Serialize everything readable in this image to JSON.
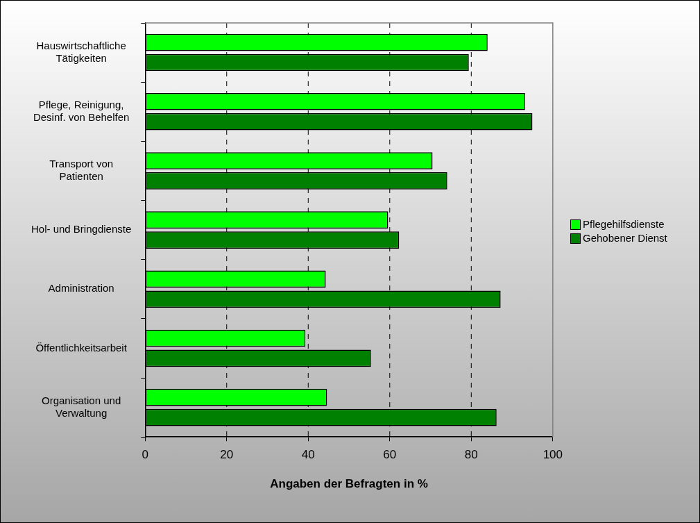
{
  "chart_data": {
    "type": "bar",
    "orientation": "horizontal",
    "xlabel": "Angaben der Befragten in %",
    "categories": [
      "Hauswirtschaftliche Tätigkeiten",
      "Pflege, Reinigung, Desinf. von Behelfen",
      "Transport von Patienten",
      "Hol- und Bringdienste",
      "Administration",
      "Öffentlichkeitsarbeit",
      "Organisation und Verwaltung"
    ],
    "series": [
      {
        "name": "Pflegehilfsdienste",
        "color": "#00ff00",
        "values": [
          84.0,
          93.2,
          70.5,
          59.6,
          44.3,
          39.3,
          44.6
        ]
      },
      {
        "name": "Gehobener Dienst",
        "color": "#008000",
        "values": [
          79.4,
          95.0,
          74.1,
          62.3,
          87.2,
          55.4,
          86.2
        ]
      }
    ],
    "xlim": [
      0,
      100
    ],
    "xticks": [
      0,
      20,
      40,
      60,
      80,
      100
    ],
    "grid": "x",
    "legend": "right"
  }
}
